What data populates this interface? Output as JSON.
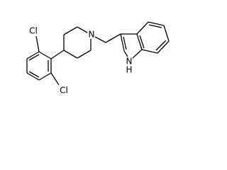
{
  "labels": {
    "cl_top": "Cl",
    "cl_bottom": "Cl",
    "piperidine_n": "N",
    "indole_n": "N",
    "indole_h": "H"
  }
}
